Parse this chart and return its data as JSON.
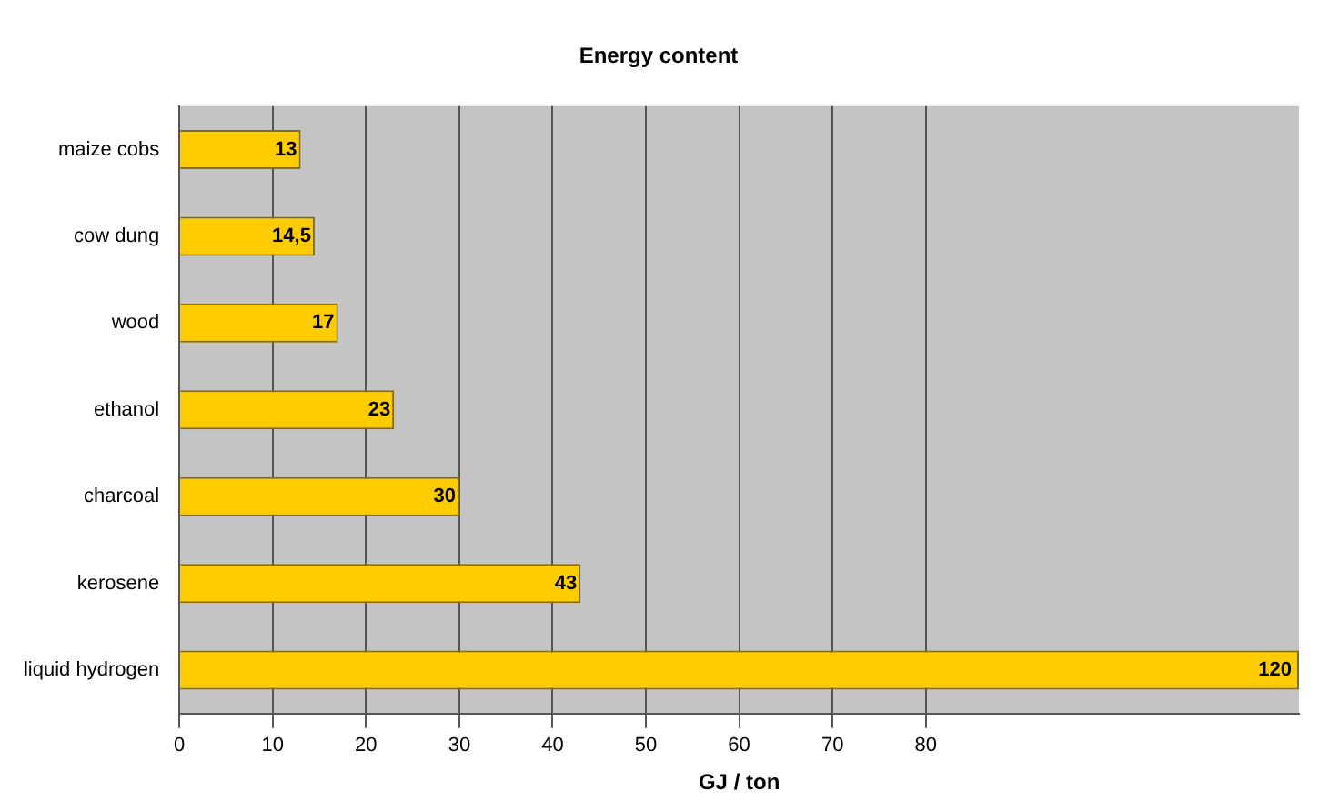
{
  "chart_data": {
    "type": "bar",
    "orientation": "horizontal",
    "title": "Energy content",
    "xlabel": "GJ / ton",
    "categories": [
      "maize cobs",
      "cow dung",
      "wood",
      "ethanol",
      "charcoal",
      "kerosene",
      "liquid hydrogen"
    ],
    "values": [
      13,
      14.5,
      17,
      23,
      30,
      43,
      120
    ],
    "value_labels": [
      "13",
      "14,5",
      "17",
      "23",
      "30",
      "43",
      "120"
    ],
    "color": "#ffcc00",
    "xlim": [
      0,
      120
    ],
    "xticks": [
      0,
      10,
      20,
      30,
      40,
      50,
      60,
      70,
      80
    ],
    "grid": "x",
    "legend": false
  }
}
